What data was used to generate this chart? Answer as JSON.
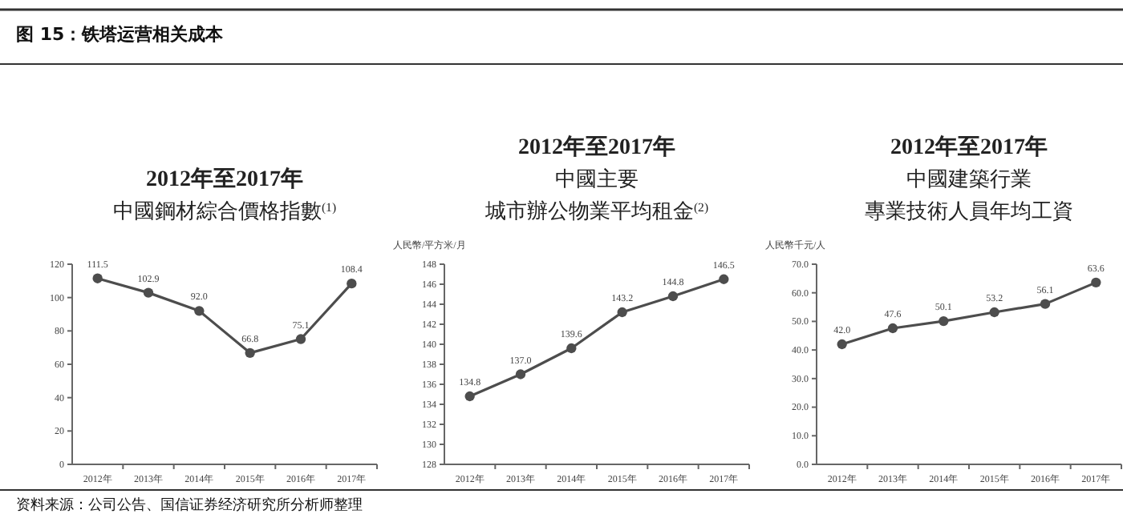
{
  "chart_data": [
    {
      "type": "other",
      "title": "图 15：铁塔运营相关成本",
      "annotations": [
        "资料来源：公司公告、国信证券经济研究所分析师整理"
      ]
    },
    {
      "type": "line",
      "title": "2012年至2017年",
      "subtitle": "中國鋼材綜合價格指數$^{(1)}$",
      "categories": [
        "2012年",
        "2013年",
        "2014年",
        "2015年",
        "2016年",
        "2017年"
      ],
      "series": [
        {
          "color": "#4d4d4d",
          "values": [
            111.5,
            102.9,
            92.0,
            66.8,
            75.1,
            108.4
          ],
          "value_labels": [
            "111.5",
            "102.9",
            "92.0",
            "66.8",
            "75.1",
            "108.4"
          ]
        }
      ],
      "ylim": [
        0,
        120
      ],
      "yticks": [
        0,
        20,
        40,
        60,
        80,
        100,
        120
      ],
      "marker": "circle",
      "grid": false
    },
    {
      "type": "line",
      "title": "2012年至2017年",
      "subtitle": "中國主要",
      "annotations": [
        "城市辦公物業平均租金$^{(2)}$"
      ],
      "ylabel": "人民幣/平方米/月",
      "categories": [
        "2012年",
        "2013年",
        "2014年",
        "2015年",
        "2016年",
        "2017年"
      ],
      "series": [
        {
          "color": "#4d4d4d",
          "values": [
            134.8,
            137.0,
            139.6,
            143.2,
            144.8,
            146.5
          ],
          "value_labels": [
            "134.8",
            "137.0",
            "139.6",
            "143.2",
            "144.8",
            "146.5"
          ]
        }
      ],
      "ylim": [
        128,
        148
      ],
      "yticks": [
        128,
        130,
        132,
        134,
        136,
        138,
        140,
        142,
        144,
        146,
        148
      ],
      "marker": "circle",
      "grid": false
    },
    {
      "type": "line",
      "title": "2012年至2017年",
      "subtitle": "中國建築行業",
      "annotations": [
        "專業技術人員年均工資"
      ],
      "ylabel": "人民幣千元/人",
      "categories": [
        "2012年",
        "2013年",
        "2014年",
        "2015年",
        "2016年",
        "2017年"
      ],
      "series": [
        {
          "color": "#4d4d4d",
          "values": [
            42.0,
            47.6,
            50.1,
            53.2,
            56.1,
            63.6
          ],
          "value_labels": [
            "42.0",
            "47.6",
            "50.1",
            "53.2",
            "56.1",
            "63.6"
          ]
        }
      ],
      "ylim": [
        0,
        70
      ],
      "yticks": [
        {
          "value": 0,
          "label": "0.0"
        },
        {
          "value": 10,
          "label": "10.0"
        },
        {
          "value": 20,
          "label": "20.0"
        },
        {
          "value": 30,
          "label": "30.0"
        },
        {
          "value": 40,
          "label": "40.0"
        },
        {
          "value": 50,
          "label": "50.0"
        },
        {
          "value": 60,
          "label": "60.0"
        },
        {
          "value": 70,
          "label": "70.0"
        }
      ],
      "marker": "circle",
      "grid": false
    }
  ]
}
